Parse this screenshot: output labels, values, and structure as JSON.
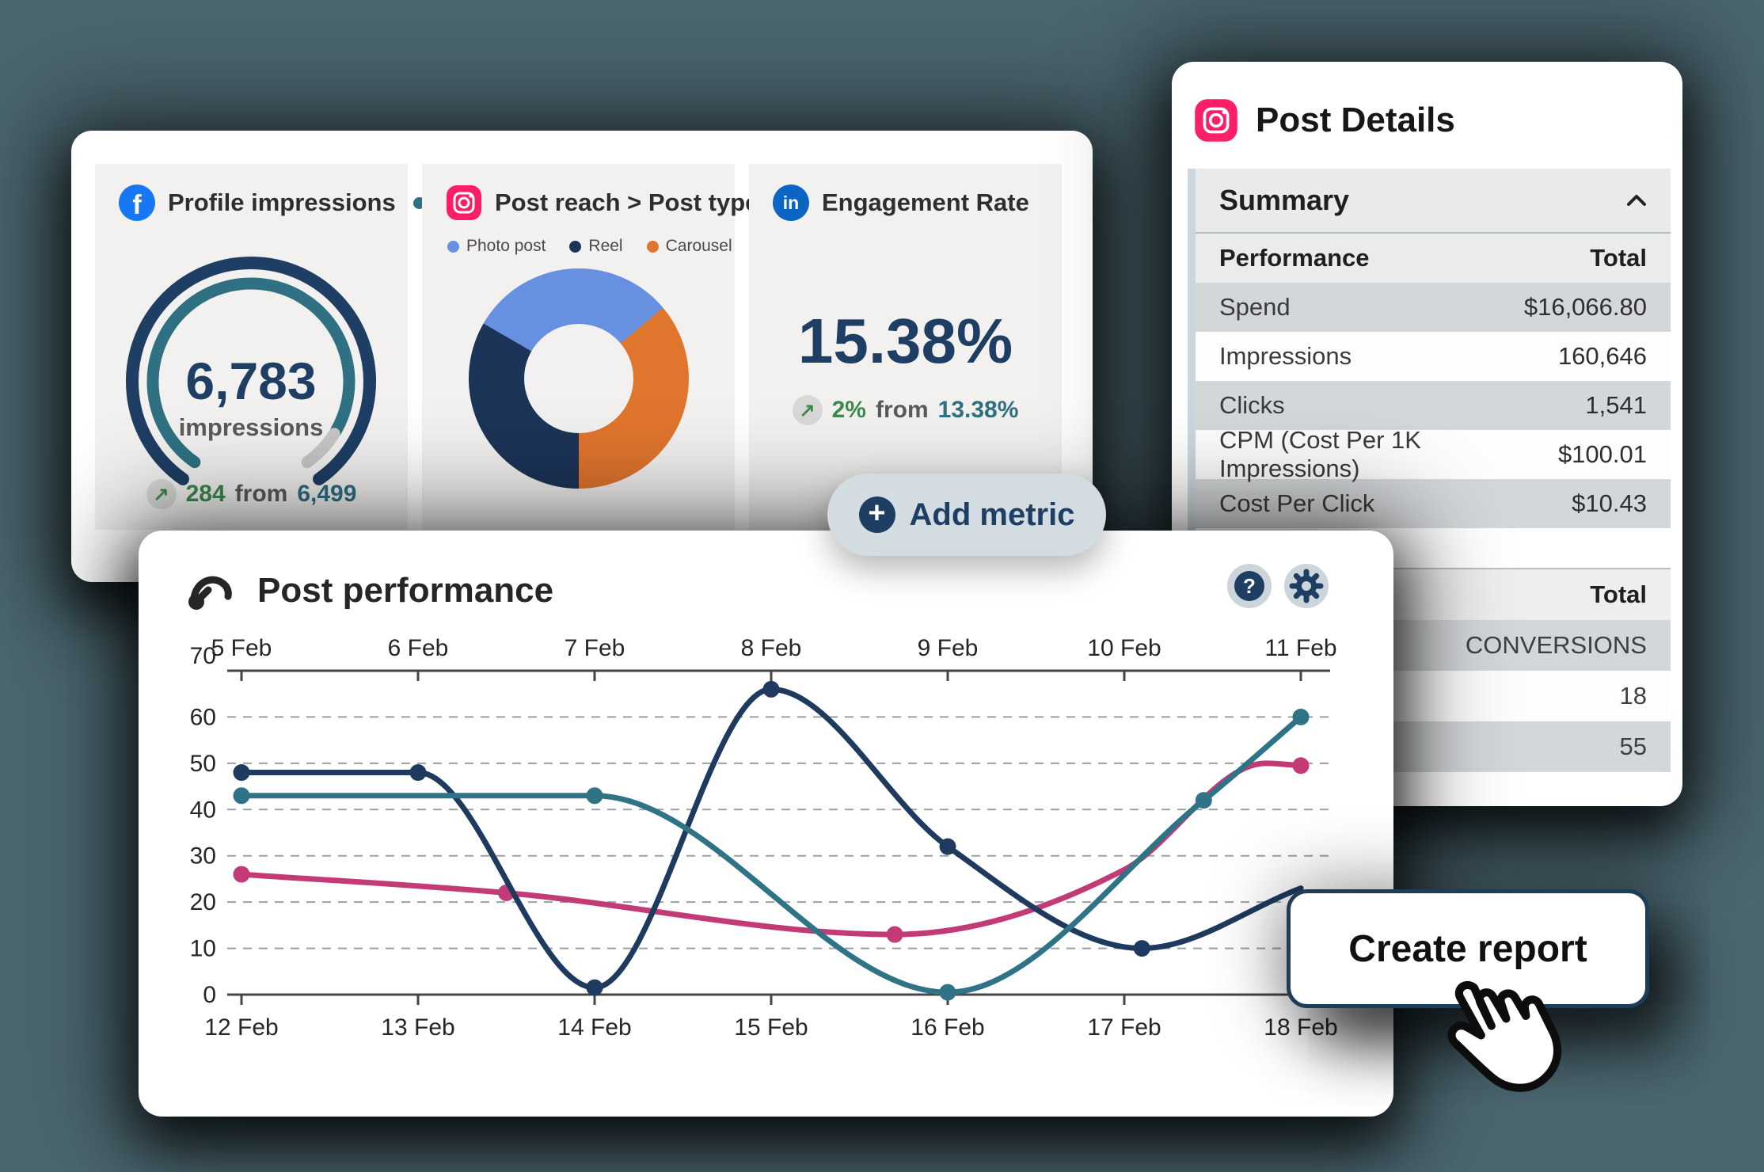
{
  "background_color": "#4b666f",
  "metrics_panel": {
    "profile_card": {
      "title": "Profile impressions",
      "delta": {
        "change": "284",
        "connector": "from",
        "previous": "6,499"
      }
    },
    "reach_card": {
      "title": "Post reach > Post type",
      "legend": [
        {
          "label": "Photo post",
          "color": "#6790e0"
        },
        {
          "label": "Reel",
          "color": "#1c3458"
        },
        {
          "label": "Carousel",
          "color": "#e0752e"
        }
      ]
    },
    "engagement_card": {
      "title": "Engagement Rate",
      "value": "15.38%",
      "delta": {
        "change": "2%",
        "connector": "from",
        "previous": "13.38%"
      }
    }
  },
  "add_metric_button": {
    "label": "Add metric"
  },
  "post_details": {
    "title": "Post Details",
    "summary": {
      "label": "Summary"
    },
    "performance_table": {
      "headers": [
        "Performance",
        "Total"
      ],
      "rows": [
        [
          "Spend",
          "$16,066.80"
        ],
        [
          "Impressions",
          "160,646"
        ],
        [
          "Clicks",
          "1,541"
        ],
        [
          "CPM (Cost Per 1K Impressions)",
          "$100.01"
        ],
        [
          "Cost Per Click",
          "$10.43"
        ]
      ]
    },
    "conversions_table": {
      "header": "Total",
      "rows": [
        "CONVERSIONS",
        "18",
        "55"
      ]
    }
  },
  "post_performance": {
    "title": "Post performance"
  },
  "create_report_button": {
    "label": "Create report"
  },
  "colors": {
    "navy": "#1e3e63",
    "teal": "#2f7183",
    "green": "#3d8a4e",
    "facebook": "#1877f2",
    "instagram": "#fb1f67",
    "linkedin": "#0a66c2"
  },
  "chart_data": [
    {
      "id": "post-performance-lines",
      "type": "line",
      "title": "Post performance",
      "x_axis_top_labels": [
        "5 Feb",
        "6 Feb",
        "7 Feb",
        "8 Feb",
        "9 Feb",
        "10 Feb",
        "11 Feb"
      ],
      "x_axis_bottom_labels": [
        "12 Feb",
        "13 Feb",
        "14 Feb",
        "15 Feb",
        "16 Feb",
        "17 Feb",
        "18 Feb"
      ],
      "x_range": [
        0,
        6
      ],
      "ylim": [
        0,
        70
      ],
      "yticks": [
        0,
        10,
        20,
        30,
        40,
        50,
        60,
        70
      ],
      "grid": "dashed-horizontal",
      "legend_position": "none",
      "series": [
        {
          "name": "pink-series",
          "color": "#c23b76",
          "points": [
            [
              0,
              26
            ],
            [
              1.5,
              22
            ],
            [
              3.7,
              13
            ],
            [
              5,
              27
            ],
            [
              5.8,
              50
            ],
            [
              6,
              49.5
            ]
          ],
          "markers": [
            [
              0,
              26
            ],
            [
              1.5,
              22
            ],
            [
              3.7,
              13
            ],
            [
              6,
              49.5
            ]
          ]
        },
        {
          "name": "navy-series",
          "color": "#1e3a5e",
          "points": [
            [
              0,
              48
            ],
            [
              1,
              48
            ],
            [
              2,
              1.5
            ],
            [
              3,
              66
            ],
            [
              4,
              32
            ],
            [
              5.1,
              10
            ],
            [
              6,
              23
            ]
          ],
          "markers": [
            [
              0,
              48
            ],
            [
              1,
              48
            ],
            [
              2,
              1.5
            ],
            [
              3,
              66
            ],
            [
              4,
              32
            ],
            [
              5.1,
              10
            ]
          ]
        },
        {
          "name": "teal-series",
          "color": "#2f7386",
          "points": [
            [
              0,
              43
            ],
            [
              1,
              43
            ],
            [
              2,
              43
            ],
            [
              4,
              0.5
            ],
            [
              5.45,
              42
            ],
            [
              6,
              60
            ]
          ],
          "markers": [
            [
              0,
              43
            ],
            [
              2,
              43
            ],
            [
              4,
              0.5
            ],
            [
              5.45,
              42
            ],
            [
              6,
              60
            ]
          ]
        }
      ]
    },
    {
      "id": "post-reach-donut",
      "type": "pie",
      "title": "Post reach > Post type",
      "start_degree": 300,
      "hole_ratio": 0.5,
      "slices": [
        {
          "label": "Photo post",
          "color": "#6790e0",
          "degrees": 110,
          "percent": 30.6
        },
        {
          "label": "Carousel",
          "color": "#e0752e",
          "degrees": 130,
          "percent": 36.1
        },
        {
          "label": "Reel",
          "color": "#1c3458",
          "degrees": 120,
          "percent": 33.3
        }
      ]
    },
    {
      "id": "profile-impressions-gauge",
      "type": "gauge",
      "value": 6783,
      "value_label": "6,783",
      "unit_label": "impressions",
      "previous_value": 6499,
      "change_value": 284,
      "arc_start_degree": 215,
      "arc_sweep_degree": 290,
      "progress_sweep_degree": 265,
      "track_color": "#1e3e63",
      "progress_color": "#2f7183",
      "remainder_color": "#c6c6c4"
    }
  ]
}
